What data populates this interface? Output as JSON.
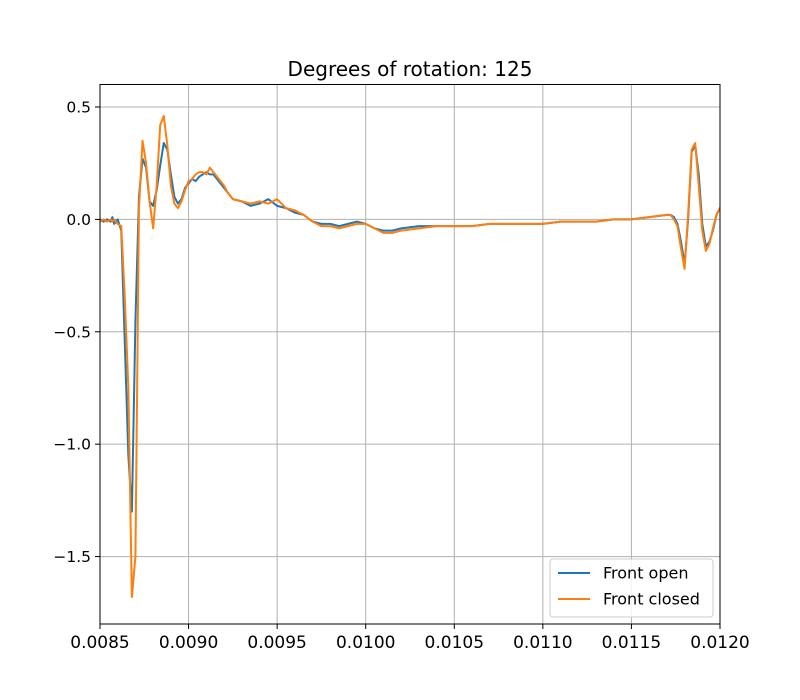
{
  "chart_data": {
    "type": "line",
    "title": "Degrees of rotation: 125",
    "xlabel": "",
    "ylabel": "",
    "xlim": [
      0.0085,
      0.012
    ],
    "ylim": [
      -1.8,
      0.6
    ],
    "xticks": [
      0.0085,
      0.009,
      0.0095,
      0.01,
      0.0105,
      0.011,
      0.0115,
      0.012
    ],
    "xtick_labels": [
      "0.0085",
      "0.0090",
      "0.0095",
      "0.0100",
      "0.0105",
      "0.0110",
      "0.0115",
      "0.0120"
    ],
    "yticks": [
      0.5,
      0.0,
      -0.5,
      -1.0,
      -1.5
    ],
    "ytick_labels": [
      "0.5",
      "0.0",
      "−0.5",
      "−1.0",
      "−1.5"
    ],
    "grid": true,
    "legend_position": "lower-right",
    "series": [
      {
        "name": "Front open",
        "color": "#1f77b4",
        "x": [
          0.0085,
          0.00852,
          0.00854,
          0.00856,
          0.00857,
          0.00858,
          0.0086,
          0.00862,
          0.00864,
          0.00866,
          0.00868,
          0.0087,
          0.00872,
          0.00874,
          0.00876,
          0.00878,
          0.0088,
          0.00882,
          0.00884,
          0.00886,
          0.00888,
          0.0089,
          0.00892,
          0.00894,
          0.00896,
          0.00898,
          0.009,
          0.00902,
          0.00904,
          0.00906,
          0.00908,
          0.0091,
          0.00912,
          0.00914,
          0.00916,
          0.00918,
          0.0092,
          0.00922,
          0.00925,
          0.0093,
          0.00935,
          0.0094,
          0.00945,
          0.0095,
          0.00955,
          0.0096,
          0.00965,
          0.0097,
          0.00975,
          0.0098,
          0.00985,
          0.0099,
          0.00995,
          0.01,
          0.01005,
          0.0101,
          0.01015,
          0.0102,
          0.0103,
          0.0104,
          0.0105,
          0.0106,
          0.0107,
          0.0108,
          0.0109,
          0.011,
          0.0111,
          0.0112,
          0.0113,
          0.0114,
          0.0115,
          0.0116,
          0.0117,
          0.01172,
          0.01174,
          0.01176,
          0.01178,
          0.0118,
          0.01182,
          0.01184,
          0.01186,
          0.01188,
          0.0119,
          0.01192,
          0.01194,
          0.01196,
          0.01198,
          0.012
        ],
        "y": [
          0.0,
          -0.01,
          0.0,
          -0.01,
          0.01,
          -0.02,
          0.0,
          -0.05,
          -0.55,
          -1.05,
          -1.3,
          -0.45,
          0.1,
          0.27,
          0.23,
          0.08,
          0.06,
          0.13,
          0.24,
          0.34,
          0.31,
          0.2,
          0.1,
          0.07,
          0.09,
          0.14,
          0.16,
          0.18,
          0.17,
          0.19,
          0.2,
          0.21,
          0.2,
          0.2,
          0.18,
          0.16,
          0.14,
          0.12,
          0.09,
          0.08,
          0.06,
          0.07,
          0.09,
          0.06,
          0.05,
          0.03,
          0.02,
          -0.01,
          -0.02,
          -0.02,
          -0.03,
          -0.02,
          -0.01,
          -0.02,
          -0.04,
          -0.05,
          -0.05,
          -0.04,
          -0.03,
          -0.03,
          -0.03,
          -0.03,
          -0.02,
          -0.02,
          -0.02,
          -0.02,
          -0.01,
          -0.01,
          -0.01,
          0.0,
          0.0,
          0.01,
          0.02,
          0.02,
          0.01,
          -0.02,
          -0.1,
          -0.2,
          0.0,
          0.3,
          0.33,
          0.2,
          -0.02,
          -0.12,
          -0.1,
          -0.05,
          0.02,
          0.05
        ]
      },
      {
        "name": "Front closed",
        "color": "#ff7f0e",
        "x": [
          0.0085,
          0.00852,
          0.00854,
          0.00856,
          0.00857,
          0.00858,
          0.0086,
          0.00862,
          0.00864,
          0.00866,
          0.00868,
          0.0087,
          0.00872,
          0.00874,
          0.00876,
          0.00878,
          0.0088,
          0.00882,
          0.00884,
          0.00886,
          0.00888,
          0.0089,
          0.00892,
          0.00894,
          0.00896,
          0.00898,
          0.009,
          0.00902,
          0.00904,
          0.00906,
          0.00908,
          0.0091,
          0.00912,
          0.00914,
          0.00916,
          0.00918,
          0.0092,
          0.00922,
          0.00925,
          0.0093,
          0.00935,
          0.0094,
          0.00945,
          0.0095,
          0.00955,
          0.0096,
          0.00965,
          0.0097,
          0.00975,
          0.0098,
          0.00985,
          0.0099,
          0.00995,
          0.01,
          0.01005,
          0.0101,
          0.01015,
          0.0102,
          0.0103,
          0.0104,
          0.0105,
          0.0106,
          0.0107,
          0.0108,
          0.0109,
          0.011,
          0.0111,
          0.0112,
          0.0113,
          0.0114,
          0.0115,
          0.0116,
          0.0117,
          0.01172,
          0.01174,
          0.01176,
          0.01178,
          0.0118,
          0.01182,
          0.01184,
          0.01186,
          0.01188,
          0.0119,
          0.01192,
          0.01194,
          0.01196,
          0.01198,
          0.012
        ],
        "y": [
          -0.01,
          0.0,
          -0.01,
          0.0,
          -0.01,
          0.0,
          -0.02,
          -0.03,
          -0.35,
          -0.75,
          -1.68,
          -1.5,
          0.05,
          0.35,
          0.25,
          0.08,
          -0.04,
          0.15,
          0.42,
          0.46,
          0.33,
          0.15,
          0.07,
          0.05,
          0.08,
          0.13,
          0.17,
          0.18,
          0.2,
          0.21,
          0.21,
          0.2,
          0.23,
          0.21,
          0.19,
          0.17,
          0.15,
          0.12,
          0.09,
          0.08,
          0.07,
          0.08,
          0.07,
          0.09,
          0.05,
          0.04,
          0.02,
          -0.01,
          -0.03,
          -0.03,
          -0.04,
          -0.03,
          -0.02,
          -0.02,
          -0.04,
          -0.06,
          -0.06,
          -0.05,
          -0.04,
          -0.03,
          -0.03,
          -0.03,
          -0.02,
          -0.02,
          -0.02,
          -0.02,
          -0.01,
          -0.01,
          -0.01,
          0.0,
          0.0,
          0.01,
          0.02,
          0.02,
          0.0,
          -0.03,
          -0.13,
          -0.22,
          0.02,
          0.31,
          0.34,
          0.15,
          -0.05,
          -0.14,
          -0.11,
          -0.04,
          0.02,
          0.05
        ]
      }
    ]
  }
}
